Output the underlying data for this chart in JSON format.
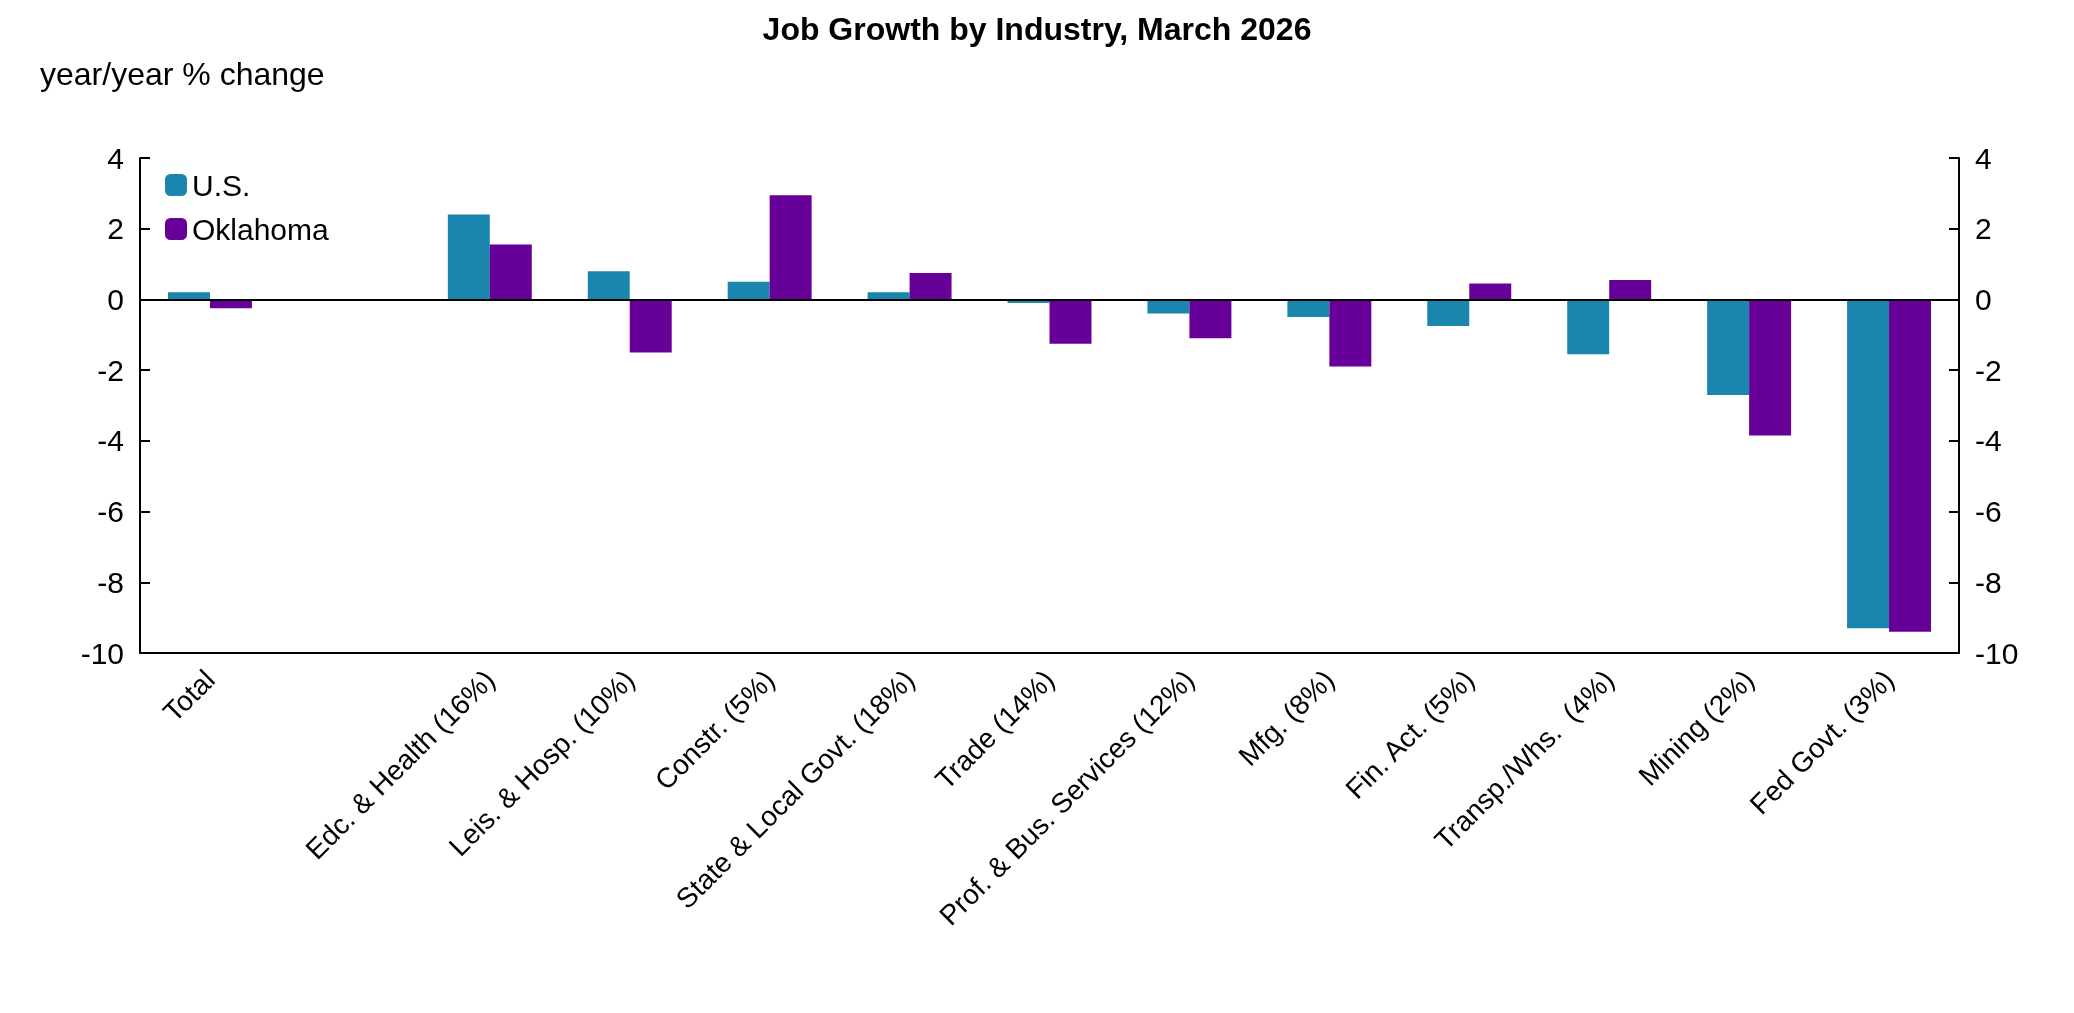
{
  "chart_data": {
    "type": "bar",
    "title": "Job Growth by Industry, March 2026",
    "ylabel": "year/year % change",
    "categories": [
      "Total",
      null,
      "Edc. & Health (16%)",
      "Leis. & Hosp. (10%)",
      "Constr. (5%)",
      "State & Local Govt. (18%)",
      "Trade (14%)",
      "Prof. & Bus. Services (12%)",
      "Mfg. (8%)",
      "Fin. Act. (5%)",
      "Transp./Whs.  (4%)",
      "Mining (2%)",
      "Fed Govt. (3%)"
    ],
    "series": [
      {
        "name": "U.S.",
        "color": "#1a86ad",
        "values": [
          0.2,
          null,
          2.4,
          0.8,
          0.5,
          0.2,
          -0.1,
          -0.4,
          -0.5,
          -0.75,
          -1.55,
          -2.7,
          -9.3
        ]
      },
      {
        "name": "Oklahoma",
        "color": "#660099",
        "values": [
          -0.25,
          null,
          1.55,
          -1.5,
          2.95,
          0.75,
          -1.25,
          -1.1,
          -1.9,
          0.45,
          0.55,
          -3.85,
          -9.4
        ]
      }
    ],
    "ylim": [
      -10,
      4
    ],
    "yticks": [
      -10,
      -8,
      -6,
      -4,
      -2,
      0,
      2,
      4
    ],
    "y2lim": [
      -10,
      4
    ],
    "y2ticks": [
      -10,
      -8,
      -6,
      -4,
      -2,
      0,
      2,
      4
    ],
    "ref_lines": [
      {
        "axis": "y",
        "value": 0,
        "color": "#000000"
      }
    ],
    "legend": "top left"
  }
}
